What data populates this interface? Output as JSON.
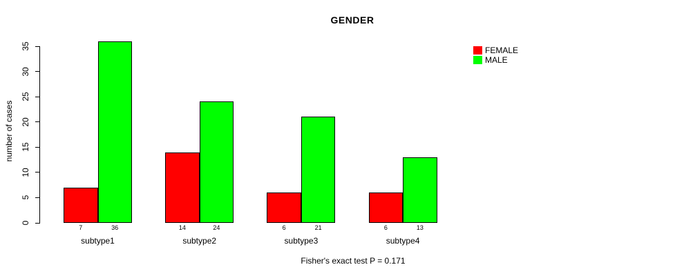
{
  "title": "GENDER",
  "footer": "Fisher's exact test P = 0.171",
  "legend": {
    "position": "top-right",
    "items": [
      {
        "label": "FEMALE",
        "color": "#ff0000"
      },
      {
        "label": "MALE",
        "color": "#00ff00"
      }
    ]
  },
  "chart_data": {
    "type": "bar",
    "grouped": true,
    "title": "GENDER",
    "xlabel": "",
    "ylabel": "number of cases",
    "categories": [
      "subtype1",
      "subtype2",
      "subtype3",
      "subtype4"
    ],
    "series": [
      {
        "name": "FEMALE",
        "color": "#ff0000",
        "values": [
          7,
          14,
          6,
          6
        ]
      },
      {
        "name": "MALE",
        "color": "#00ff00",
        "values": [
          36,
          24,
          21,
          13
        ]
      }
    ],
    "ylim": [
      0,
      35
    ],
    "yticks": [
      0,
      5,
      10,
      15,
      20,
      25,
      30,
      35
    ],
    "bar_value_labels": true,
    "grid": false,
    "legend_position": "top-right",
    "annotation": "Fisher's exact test P = 0.171"
  }
}
